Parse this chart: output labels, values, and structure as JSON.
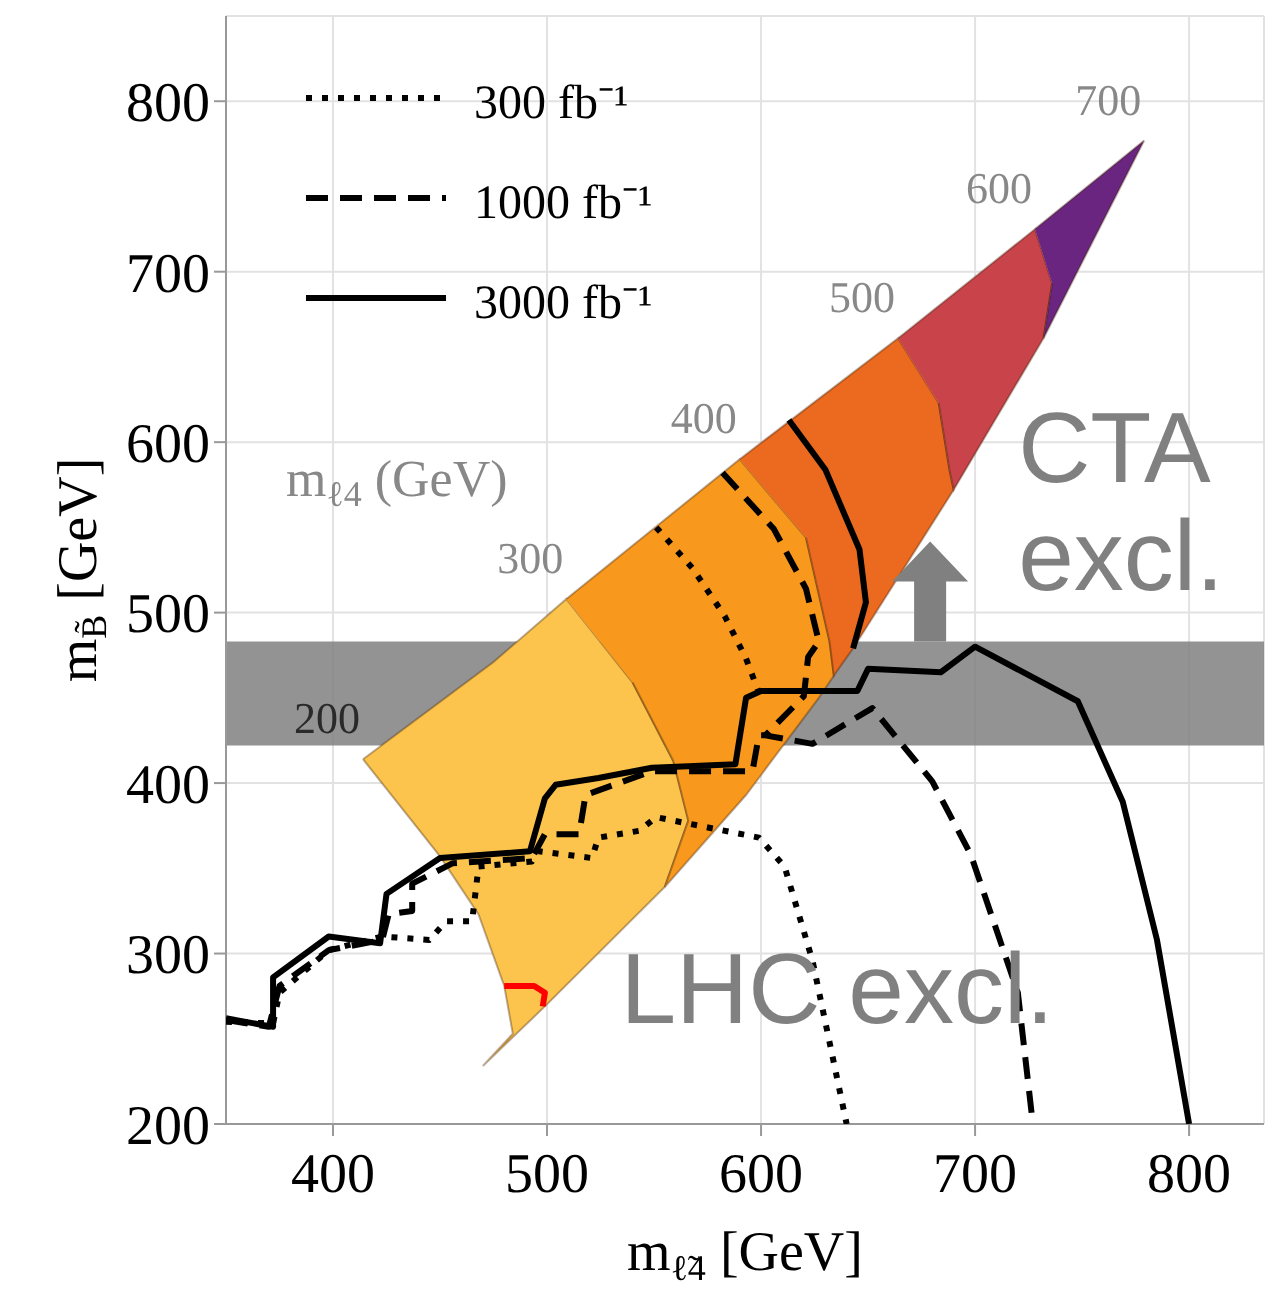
{
  "chart_data": {
    "type": "line",
    "xlabel": "m$_{ℓ̃4}$ [GeV]",
    "ylabel": "m$_{B̃}$ [GeV]",
    "xlim": [
      350,
      835
    ],
    "xticks": [
      400,
      500,
      600,
      700,
      800
    ],
    "ylim": [
      200,
      850
    ],
    "yticks": [
      200,
      300,
      400,
      500,
      600,
      700,
      800
    ],
    "grid": true,
    "legend": "top left",
    "series": [
      {
        "type": "area",
        "color": "#fcc44c",
        "x": [
          414,
          475,
          509,
          540,
          559,
          566,
          555,
          499,
          470,
          484,
          480,
          468,
          450,
          414
        ],
        "values": [
          414,
          471,
          508,
          459,
          413,
          378,
          339,
          269,
          234,
          253,
          281,
          323,
          357,
          414
        ]
      },
      {
        "type": "area",
        "color": "#f8981c",
        "x": [
          509,
          590,
          621,
          632,
          634,
          627,
          593,
          555,
          566,
          559,
          540
        ],
        "values": [
          508,
          590,
          544,
          483,
          463,
          450,
          393,
          339,
          378,
          413,
          459
        ]
      },
      {
        "type": "area",
        "color": "#eb6a20",
        "x": [
          590,
          664,
          683,
          688,
          690,
          643,
          634,
          632,
          621
        ],
        "values": [
          590,
          661,
          623,
          584,
          572,
          479,
          463,
          483,
          544
        ]
      },
      {
        "type": "area",
        "color": "#c8434a",
        "x": [
          664,
          728,
          736,
          732,
          690,
          688,
          683
        ],
        "values": [
          661,
          725,
          693,
          661,
          572,
          584,
          623
        ]
      },
      {
        "type": "area",
        "color": "#6a2580",
        "x": [
          728,
          779,
          732,
          736
        ],
        "values": [
          725,
          777,
          661,
          693
        ]
      },
      {
        "name": "300 fb⁻¹",
        "color": "#000000",
        "line_style": "dotted",
        "x": [
          350,
          372,
          375,
          398,
          423,
          445,
          453,
          465,
          468,
          493,
          496,
          521,
          524,
          543,
          551,
          599,
          611,
          624,
          640
        ],
        "values": [
          260,
          259,
          277,
          302,
          310,
          308,
          319,
          319,
          351,
          354,
          360,
          356,
          368,
          372,
          380,
          368,
          351,
          296,
          200
        ]
      },
      {
        "name": "1000 fb⁻¹",
        "color": "#000000",
        "line_style": "dashed",
        "x": [
          350,
          370,
          375,
          398,
          423,
          426,
          437,
          437,
          456,
          493,
          499,
          515,
          518,
          549,
          596,
          599,
          602,
          624,
          652,
          680,
          698,
          720,
          727
        ],
        "values": [
          261,
          257,
          281,
          302,
          308,
          323,
          325,
          341,
          353,
          356,
          370,
          370,
          393,
          407,
          407,
          428,
          428,
          423,
          444,
          401,
          358,
          277,
          200
        ]
      },
      {
        "name": "3000 fb⁻¹",
        "color": "#000000",
        "line_style": "solid",
        "x": [
          350,
          372,
          372,
          398,
          422,
          425,
          450,
          492,
          499,
          504,
          524,
          549,
          588,
          593,
          600,
          645,
          650,
          684,
          700,
          748,
          769,
          785,
          800
        ],
        "values": [
          262,
          257,
          286,
          310,
          306,
          335,
          356,
          360,
          391,
          399,
          403,
          409,
          411,
          450,
          454,
          454,
          467,
          465,
          480,
          448,
          389,
          308,
          200
        ]
      },
      {
        "type": "line",
        "color": "#000000",
        "line_style": "dotted",
        "x": [
          551,
          568,
          583,
          593,
          599
        ],
        "values": [
          550,
          526,
          498,
          473,
          453
        ]
      },
      {
        "type": "line",
        "color": "#000000",
        "line_style": "dashed",
        "x": [
          582,
          606,
          621,
          627,
          622,
          620,
          602
        ],
        "values": [
          582,
          549,
          514,
          483,
          474,
          451,
          428
        ]
      },
      {
        "type": "line",
        "color": "#000000",
        "line_style": "solid",
        "x": [
          613,
          630,
          646,
          649,
          643
        ],
        "values": [
          613,
          584,
          537,
          506,
          479
        ]
      },
      {
        "type": "line",
        "color": "#ff0000",
        "line_style": "solid",
        "x": [
          480,
          494,
          499,
          498
        ],
        "values": [
          281,
          281,
          277,
          269
        ]
      }
    ],
    "bands": [
      {
        "axis": "y",
        "from": 422,
        "to": 483,
        "color": "#808080"
      }
    ],
    "annotations": [
      "m$_{ℓ4}$ (GeV)",
      "200",
      "300",
      "400",
      "500",
      "600",
      "700",
      {
        "text": "CTA excl.",
        "x": 679,
        "y": 483
      },
      "LHC excl."
    ]
  }
}
